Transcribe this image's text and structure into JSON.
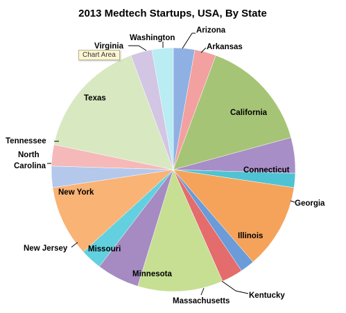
{
  "chart_data": {
    "type": "pie",
    "title": "2013 Medtech Startups, USA, By State",
    "slices": [
      {
        "name": "Arizona",
        "value": 3,
        "color": "#8fb0e3"
      },
      {
        "name": "Arkansas",
        "value": 3,
        "color": "#f2a0a0"
      },
      {
        "name": "California",
        "value": 16,
        "color": "#a6c476"
      },
      {
        "name": "Connecticut",
        "value": 5,
        "color": "#a88ec6"
      },
      {
        "name": "Georgia",
        "value": 2,
        "color": "#4fc3d3"
      },
      {
        "name": "Illinois",
        "value": 12,
        "color": "#f5a35b"
      },
      {
        "name": "Kentucky",
        "value": 2,
        "color": "#6b9bd8"
      },
      {
        "name": "Massachusetts",
        "value": 3,
        "color": "#e46c6c"
      },
      {
        "name": "Minnesota",
        "value": 12,
        "color": "#c6df93"
      },
      {
        "name": "Missouri",
        "value": 6,
        "color": "#a58bc2"
      },
      {
        "name": "New Jersey",
        "value": 3,
        "color": "#62d0df"
      },
      {
        "name": "New York",
        "value": 10,
        "color": "#f9b375"
      },
      {
        "name": "North Carolina",
        "value": 3,
        "color": "#b4c8ec"
      },
      {
        "name": "Tennessee",
        "value": 3,
        "color": "#f5b9b9"
      },
      {
        "name": "Texas",
        "value": 17,
        "color": "#d8e8c0"
      },
      {
        "name": "Virginia",
        "value": 3,
        "color": "#d2c6e4"
      },
      {
        "name": "Washington",
        "value": 3,
        "color": "#b9ecf3"
      }
    ]
  },
  "labels": {
    "arizona": "Arizona",
    "arkansas": "Arkansas",
    "california": "California",
    "connecticut": "Connecticut",
    "georgia": "Georgia",
    "illinois": "Illinois",
    "kentucky": "Kentucky",
    "massachusetts": "Massachusetts",
    "minnesota": "Minnesota",
    "missouri": "Missouri",
    "new_jersey": "New Jersey",
    "new_york": "New York",
    "north_carolina_1": "North",
    "north_carolina_2": "Carolina",
    "tennessee": "Tennessee",
    "texas": "Texas",
    "virginia": "Virginia",
    "washington": "Washington"
  },
  "tooltip": "Chart Area"
}
